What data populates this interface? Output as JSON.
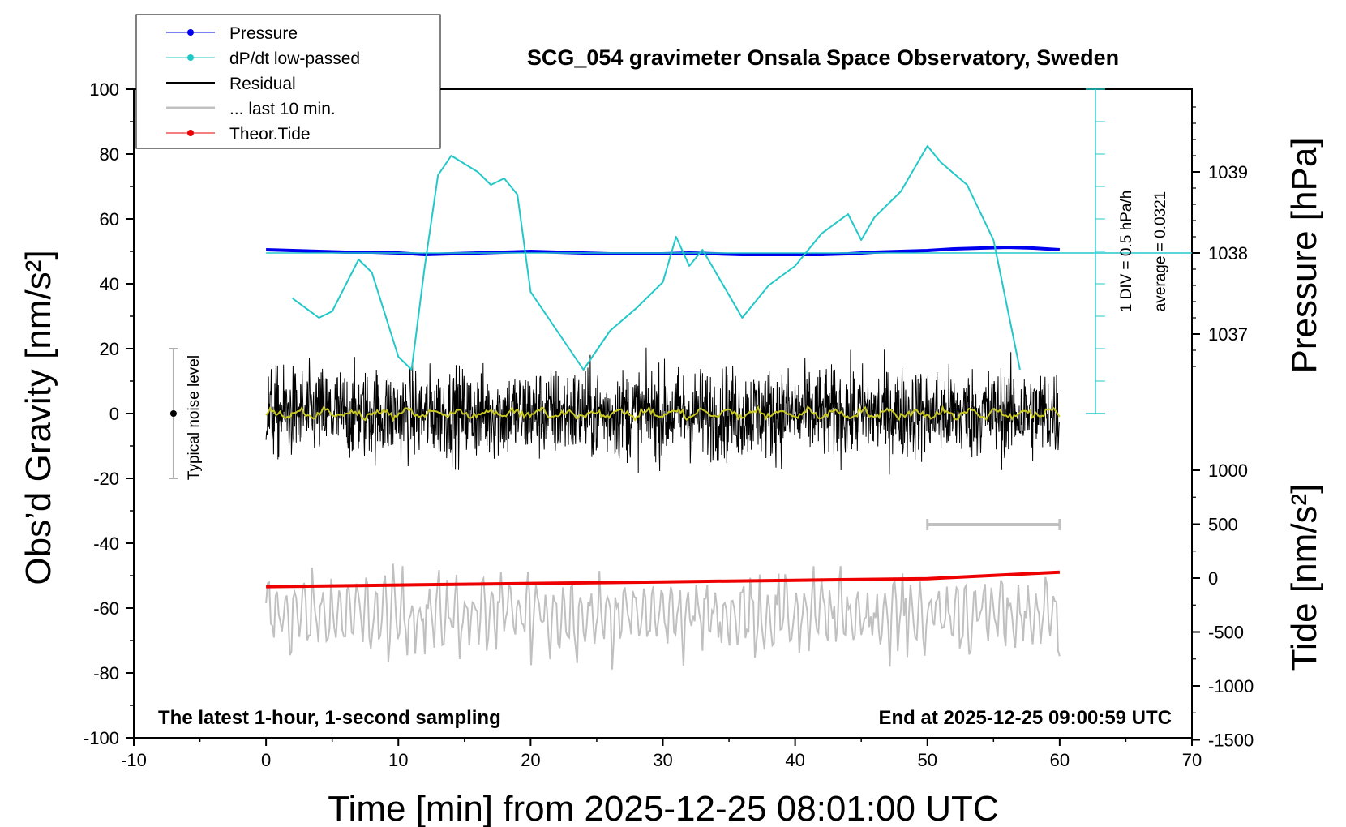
{
  "chart_data": {
    "type": "line",
    "title": "SCG_054 gravimeter Onsala Space Observatory, Sweden",
    "xlabel": "Time [min] from 2025-12-25 08:01:00 UTC",
    "ylabel_left": "Obs’d Gravity [nm/s²]",
    "ylabel_right_top": "Pressure [hPa]",
    "ylabel_right_bottom": "Tide [nm/s²]",
    "xlim": [
      -10,
      70
    ],
    "ylim": [
      -100,
      100
    ],
    "x_ticks": [
      "-10",
      "0",
      "10",
      "20",
      "30",
      "40",
      "50",
      "60",
      "70"
    ],
    "y_ticks": [
      "-100",
      "-80",
      "-60",
      "-40",
      "-20",
      "0",
      "20",
      "40",
      "60",
      "80",
      "100"
    ],
    "pressure_ticks": [
      "1037",
      "1038",
      "1039"
    ],
    "tide_ticks": [
      "-1500",
      "-1000",
      "-500",
      "0",
      "500",
      "1000"
    ],
    "legend_position": "top-left",
    "legend": [
      {
        "label": "Pressure",
        "color": "#0000ee"
      },
      {
        "label": "dP/dt low-passed",
        "color": "#22c8c8"
      },
      {
        "label": "Residual",
        "color": "#000000"
      },
      {
        "label": "... last 10 min.",
        "color": "#c0c0c0"
      },
      {
        "label": "Theor.Tide",
        "color": "#ee0000"
      }
    ],
    "annotations": {
      "noise_label": "Typical noise level",
      "div_label": "1 DIV = 0.5 hPa/h",
      "average_label": "average = 0.0321",
      "bottom_left": "The latest 1-hour, 1-second sampling",
      "bottom_right": "End at 2025-12-25 09:00:59 UTC"
    },
    "noise_level_range": [
      -20,
      20
    ],
    "last10_span_min": [
      50,
      60
    ],
    "series": [
      {
        "name": "Pressure",
        "axis": "pressure_hPa",
        "x": [
          0,
          2,
          4,
          6,
          8,
          10,
          12,
          14,
          16,
          18,
          20,
          22,
          24,
          26,
          28,
          30,
          32,
          34,
          36,
          38,
          40,
          42,
          44,
          46,
          48,
          50,
          52,
          54,
          56,
          58,
          60
        ],
        "values": [
          1038.04,
          1038.03,
          1038.02,
          1038.01,
          1038.01,
          1038.0,
          1037.98,
          1037.99,
          1038.0,
          1038.01,
          1038.02,
          1038.01,
          1038.0,
          1037.99,
          1037.99,
          1037.99,
          1038.0,
          1037.99,
          1037.98,
          1037.98,
          1037.98,
          1037.98,
          1037.99,
          1038.01,
          1038.02,
          1038.03,
          1038.05,
          1038.06,
          1038.07,
          1038.06,
          1038.04
        ]
      },
      {
        "name": "dP/dt low-passed",
        "axis": "rate_hPa_per_h",
        "x": [
          2,
          4,
          5,
          7,
          8,
          10,
          11,
          12,
          13,
          14,
          16,
          17,
          18,
          19,
          20,
          22,
          24,
          26,
          28,
          30,
          31,
          32,
          33,
          34,
          36,
          38,
          40,
          42,
          44,
          45,
          46,
          48,
          50,
          51,
          53,
          55,
          57
        ],
        "values": [
          -0.7,
          -1.0,
          -0.9,
          -0.1,
          -0.3,
          -1.6,
          -1.8,
          -0.2,
          1.2,
          1.5,
          1.25,
          1.05,
          1.15,
          0.9,
          -0.6,
          -1.2,
          -1.8,
          -1.2,
          -0.85,
          -0.45,
          0.25,
          -0.2,
          0.05,
          -0.3,
          -1.0,
          -0.5,
          -0.2,
          0.3,
          0.6,
          0.2,
          0.55,
          0.95,
          1.65,
          1.4,
          1.05,
          0.2,
          -1.8
        ]
      },
      {
        "name": "Residual",
        "axis": "gravity_nm_s2",
        "x_range": [
          0,
          60
        ],
        "noise_amplitude": 10,
        "y_range_observed": [
          -35,
          35
        ],
        "values_mean": 0
      },
      {
        "name": "... last 10 min.",
        "axis": "gravity_nm_s2",
        "x_range": [
          0,
          60
        ],
        "offset": -62,
        "noise_amplitude": 8,
        "values": [
          -62
        ]
      },
      {
        "name": "Theor.Tide",
        "axis": "tide_nm_s2",
        "x": [
          0,
          10,
          20,
          30,
          40,
          50,
          60
        ],
        "values": [
          -80,
          -65,
          -50,
          -35,
          -20,
          -5,
          55
        ]
      }
    ]
  }
}
